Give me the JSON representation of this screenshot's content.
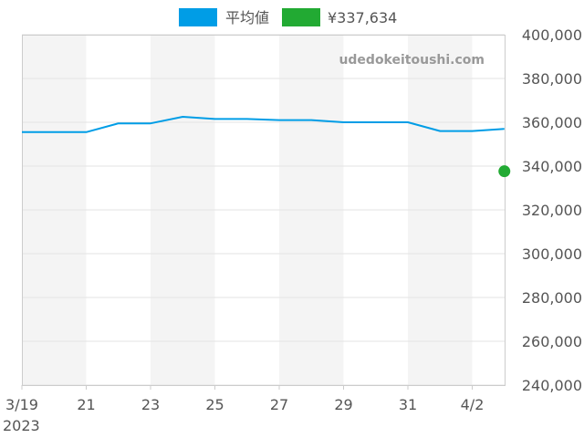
{
  "chart_data": {
    "type": "line",
    "x": [
      "3/19",
      "3/20",
      "3/21",
      "3/22",
      "3/23",
      "3/24",
      "3/25",
      "3/26",
      "3/27",
      "3/28",
      "3/29",
      "3/30",
      "3/31",
      "4/1",
      "4/2",
      "4/3"
    ],
    "series": [
      {
        "name": "平均値",
        "color": "#009de6",
        "values": [
          355500,
          355500,
          355500,
          359500,
          359500,
          362500,
          361500,
          361500,
          361000,
          361000,
          360000,
          360000,
          360000,
          356000,
          356000,
          357000
        ]
      },
      {
        "name": "¥337,634",
        "color": "#22aa33",
        "points": [
          {
            "x": "4/3",
            "y": 337634
          }
        ]
      }
    ],
    "x_ticks": [
      "3/19",
      "21",
      "23",
      "25",
      "27",
      "29",
      "31",
      "4/2"
    ],
    "x_year_label": "2023",
    "y_ticks": [
      "240,000",
      "260,000",
      "280,000",
      "300,000",
      "320,000",
      "340,000",
      "360,000",
      "380,000",
      "400,000"
    ],
    "ylim": [
      240000,
      400000
    ],
    "grid": true,
    "legend_position": "top-center",
    "watermark": "udedokeitoushi.com"
  }
}
